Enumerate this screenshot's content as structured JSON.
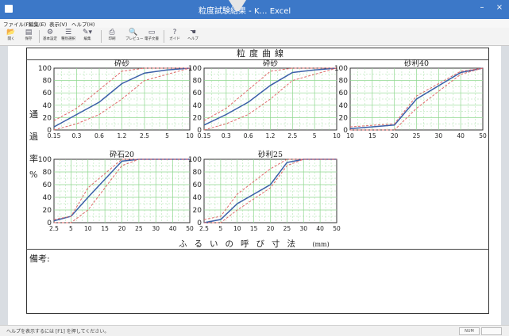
{
  "window": {
    "title": "粒度試験結果 - K… Excel",
    "minimize": "–",
    "close": "×"
  },
  "menu": [
    "ファイル(F)",
    "編集(E)",
    "表示(V)",
    "ヘルプ(H)"
  ],
  "toolbar": [
    {
      "label": "開く",
      "icon": "open-icon",
      "glyph": "📂"
    },
    {
      "label": "保存",
      "icon": "save-icon",
      "glyph": "▤"
    },
    {
      "label": "基本設定",
      "icon": "settings-icon",
      "glyph": "⚙"
    },
    {
      "label": "種別選択",
      "icon": "select-icon",
      "glyph": "☰"
    },
    {
      "label": "編集",
      "icon": "edit-icon",
      "glyph": "✎▾"
    },
    {
      "label": "印刷",
      "icon": "print-icon",
      "glyph": "⎙"
    },
    {
      "label": "プレビュー",
      "icon": "preview-icon",
      "glyph": "🔍"
    },
    {
      "label": "電子文書",
      "icon": "document-icon",
      "glyph": "▭"
    },
    {
      "label": "ガイド",
      "icon": "guide-icon",
      "glyph": "?"
    },
    {
      "label": "ヘルプ",
      "icon": "help-icon",
      "glyph": "☚"
    }
  ],
  "sheet": {
    "title": "粒度曲線",
    "ylabel": [
      "通",
      "過",
      "率",
      "%"
    ],
    "xaxis_title": "ふるいの呼び寸法",
    "xaxis_unit": "(mm)",
    "remarks_label": "備考:"
  },
  "colors": {
    "grid": "#8fd88f",
    "curve": "#3b5fa8",
    "limit": "#e06868",
    "frame": "#333333"
  },
  "status": {
    "text": "ヘルプを表示するには [F1] を押してください。",
    "box1": "NUM",
    "box2": ""
  },
  "chart_data": [
    {
      "type": "line",
      "title": "砕砂",
      "ylim": [
        0,
        100
      ],
      "ticks_x": [
        "0.15",
        "0.3",
        "0.6",
        "1.2",
        "2.5",
        "5",
        "10"
      ],
      "ticks_y": [
        "0",
        "20",
        "40",
        "60",
        "80",
        "100"
      ],
      "series": [
        {
          "role": "curve",
          "points": [
            [
              0.15,
              5
            ],
            [
              0.3,
              25
            ],
            [
              0.6,
              45
            ],
            [
              1.2,
              75
            ],
            [
              2.5,
              92
            ],
            [
              5,
              97
            ],
            [
              10,
              100
            ]
          ]
        },
        {
          "role": "upper",
          "points": [
            [
              0.15,
              15
            ],
            [
              0.3,
              35
            ],
            [
              0.6,
              65
            ],
            [
              1.2,
              95
            ],
            [
              2.5,
              100
            ],
            [
              10,
              100
            ]
          ]
        },
        {
          "role": "lower",
          "points": [
            [
              0.15,
              0
            ],
            [
              0.3,
              10
            ],
            [
              0.6,
              25
            ],
            [
              1.2,
              50
            ],
            [
              2.5,
              80
            ],
            [
              5,
              90
            ],
            [
              10,
              100
            ]
          ]
        }
      ]
    },
    {
      "type": "line",
      "title": "砕砂",
      "ylim": [
        0,
        100
      ],
      "ticks_x": [
        "0.15",
        "0.3",
        "0.6",
        "1.2",
        "2.5",
        "5",
        "10"
      ],
      "ticks_y": [
        "0",
        "20",
        "40",
        "60",
        "80",
        "100"
      ],
      "series": [
        {
          "role": "curve",
          "points": [
            [
              0.15,
              8
            ],
            [
              0.3,
              25
            ],
            [
              0.6,
              45
            ],
            [
              1.2,
              72
            ],
            [
              2.5,
              93
            ],
            [
              5,
              97
            ],
            [
              10,
              100
            ]
          ]
        },
        {
          "role": "upper",
          "points": [
            [
              0.15,
              15
            ],
            [
              0.3,
              35
            ],
            [
              0.6,
              65
            ],
            [
              1.2,
              95
            ],
            [
              2.5,
              100
            ],
            [
              10,
              100
            ]
          ]
        },
        {
          "role": "lower",
          "points": [
            [
              0.15,
              0
            ],
            [
              0.3,
              10
            ],
            [
              0.6,
              25
            ],
            [
              1.2,
              50
            ],
            [
              2.5,
              80
            ],
            [
              5,
              90
            ],
            [
              10,
              100
            ]
          ]
        }
      ]
    },
    {
      "type": "line",
      "title": "砂利40",
      "ylim": [
        0,
        100
      ],
      "ticks_x": [
        "10",
        "15",
        "20",
        "25",
        "30",
        "40",
        "50"
      ],
      "ticks_y": [
        "0",
        "20",
        "40",
        "60",
        "80",
        "100"
      ],
      "series": [
        {
          "role": "curve",
          "points": [
            [
              10,
              2
            ],
            [
              20,
              8
            ],
            [
              25,
              50
            ],
            [
              40,
              93
            ],
            [
              50,
              100
            ]
          ]
        },
        {
          "role": "upper",
          "points": [
            [
              10,
              5
            ],
            [
              20,
              10
            ],
            [
              25,
              55
            ],
            [
              40,
              95
            ],
            [
              50,
              100
            ]
          ]
        },
        {
          "role": "lower",
          "points": [
            [
              10,
              0
            ],
            [
              20,
              0
            ],
            [
              25,
              35
            ],
            [
              40,
              90
            ],
            [
              50,
              100
            ]
          ]
        }
      ]
    },
    {
      "type": "line",
      "title": "砕石20",
      "ylim": [
        0,
        100
      ],
      "ticks_x": [
        "2.5",
        "5",
        "10",
        "15",
        "20",
        "25",
        "30",
        "40",
        "50"
      ],
      "ticks_y": [
        "0",
        "20",
        "40",
        "60",
        "80",
        "100"
      ],
      "series": [
        {
          "role": "curve",
          "points": [
            [
              2.5,
              3
            ],
            [
              5,
              10
            ],
            [
              10,
              40
            ],
            [
              20,
              97
            ],
            [
              25,
              100
            ],
            [
              50,
              100
            ]
          ]
        },
        {
          "role": "upper",
          "points": [
            [
              2.5,
              5
            ],
            [
              5,
              10
            ],
            [
              10,
              55
            ],
            [
              20,
              100
            ],
            [
              50,
              100
            ]
          ]
        },
        {
          "role": "lower",
          "points": [
            [
              2.5,
              0
            ],
            [
              5,
              0
            ],
            [
              10,
              20
            ],
            [
              20,
              90
            ],
            [
              25,
              100
            ],
            [
              50,
              100
            ]
          ]
        }
      ]
    },
    {
      "type": "line",
      "title": "砂利25",
      "ylim": [
        0,
        100
      ],
      "ticks_x": [
        "2.5",
        "5",
        "10",
        "15",
        "20",
        "25",
        "30",
        "40",
        "50"
      ],
      "ticks_y": [
        "0",
        "20",
        "40",
        "60",
        "80",
        "100"
      ],
      "series": [
        {
          "role": "curve",
          "points": [
            [
              2.5,
              0
            ],
            [
              5,
              5
            ],
            [
              10,
              30
            ],
            [
              20,
              60
            ],
            [
              25,
              95
            ],
            [
              30,
              100
            ],
            [
              50,
              100
            ]
          ]
        },
        {
          "role": "upper",
          "points": [
            [
              2.5,
              5
            ],
            [
              5,
              10
            ],
            [
              10,
              45
            ],
            [
              20,
              85
            ],
            [
              25,
              100
            ],
            [
              50,
              100
            ]
          ]
        },
        {
          "role": "lower",
          "points": [
            [
              2.5,
              0
            ],
            [
              5,
              0
            ],
            [
              10,
              20
            ],
            [
              20,
              55
            ],
            [
              25,
              90
            ],
            [
              30,
              100
            ],
            [
              50,
              100
            ]
          ]
        }
      ]
    }
  ]
}
